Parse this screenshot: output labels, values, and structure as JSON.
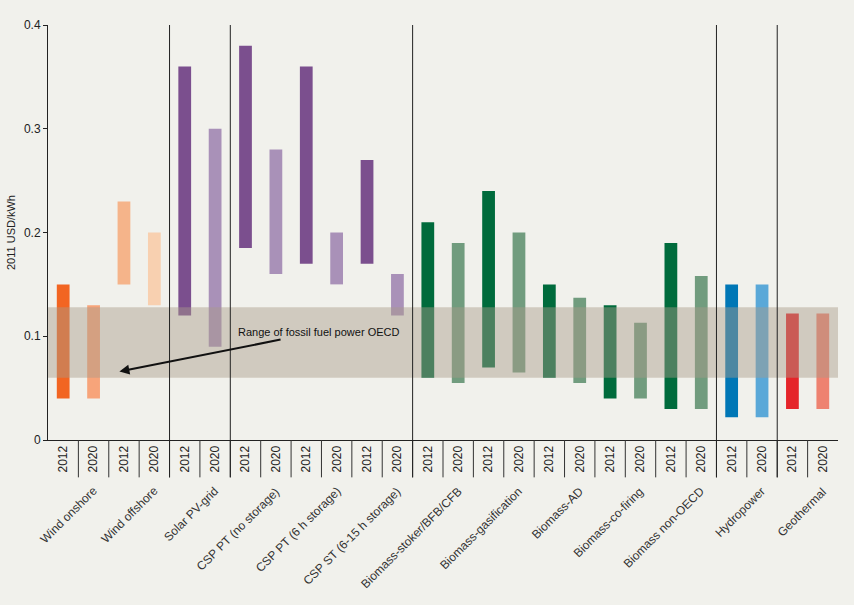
{
  "chart_data": {
    "type": "floating_bar",
    "y_label": "2011 USD/kWh",
    "categories": [
      "2012",
      "2020",
      "2012",
      "2020",
      "2012",
      "2020",
      "2012",
      "2020",
      "2012",
      "2020",
      "2012",
      "2020",
      "2012",
      "2020",
      "2012",
      "2020",
      "2012",
      "2020",
      "2012",
      "2020",
      "2012",
      "2020",
      "2012",
      "2020",
      "2012",
      "2020"
    ],
    "groups": [
      "Wind onshore",
      "Wind offshore",
      "Solar PV-grid",
      "CSP PT (no storage)",
      "CSP PT (6 h storage)",
      "CSP ST (6-15 h storage)",
      "Biomass-stoker/BFB/CFB",
      "Biomass-gasification",
      "Biomass-AD",
      "Biomass-co-firing",
      "Biomass non-OECD",
      "Hydropower",
      "Geothermal"
    ],
    "sections": [
      2,
      1,
      3,
      5,
      1,
      1
    ],
    "low": [
      0.04,
      0.04,
      0.15,
      0.13,
      0.12,
      0.09,
      0.185,
      0.16,
      0.17,
      0.15,
      0.17,
      0.12,
      0.06,
      0.055,
      0.07,
      0.065,
      0.06,
      0.055,
      0.04,
      0.04,
      0.03,
      0.03,
      0.022,
      0.022,
      0.03,
      0.03
    ],
    "high": [
      0.15,
      0.13,
      0.23,
      0.2,
      0.36,
      0.3,
      0.38,
      0.28,
      0.36,
      0.2,
      0.27,
      0.16,
      0.21,
      0.19,
      0.24,
      0.2,
      0.15,
      0.137,
      0.13,
      0.113,
      0.19,
      0.158,
      0.15,
      0.15,
      0.122,
      0.122
    ],
    "colors": [
      "#f26522",
      "#f7a47a",
      "#f5b48a",
      "#f8d0b0",
      "#7b4f8e",
      "#a991b8",
      "#7b4f8e",
      "#a991b8",
      "#7b4f8e",
      "#a991b8",
      "#7b4f8e",
      "#a991b8",
      "#006b3c",
      "#719c7e",
      "#006b3c",
      "#719c7e",
      "#006b3c",
      "#719c7e",
      "#006b3c",
      "#719c7e",
      "#006b3c",
      "#719c7e",
      "#0077b6",
      "#5aa8d8",
      "#e5252a",
      "#ee8270"
    ],
    "fossil_range": [
      0.06,
      0.128
    ],
    "annotation": "Range of fossil fuel power OECD",
    "ylim": [
      0,
      0.4
    ],
    "yticks": [
      0,
      0.1,
      0.2,
      0.3,
      0.4
    ],
    "grid": false
  }
}
